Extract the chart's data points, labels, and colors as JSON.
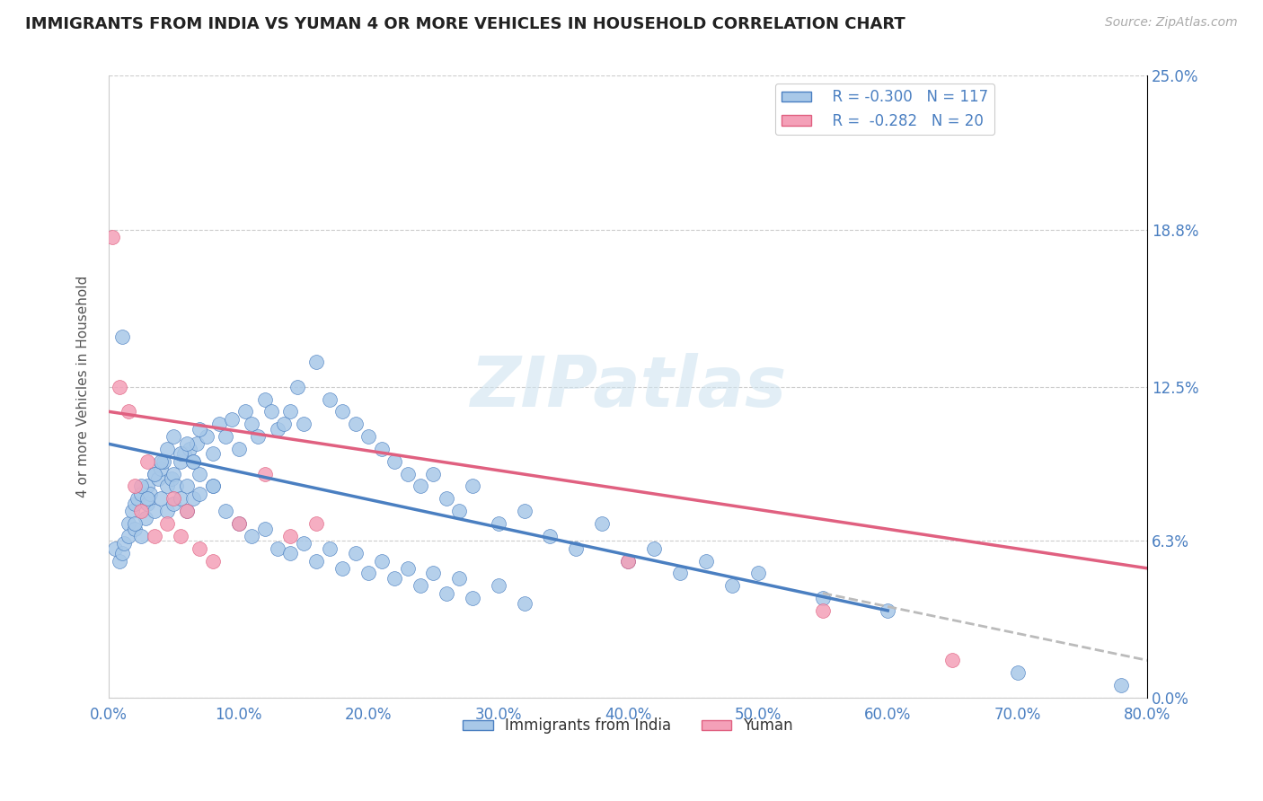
{
  "title": "IMMIGRANTS FROM INDIA VS YUMAN 4 OR MORE VEHICLES IN HOUSEHOLD CORRELATION CHART",
  "source_text": "Source: ZipAtlas.com",
  "ylabel": "4 or more Vehicles in Household",
  "x_min": 0.0,
  "x_max": 80.0,
  "y_min": 0.0,
  "y_max": 25.0,
  "y_ticks": [
    0.0,
    6.3,
    12.5,
    18.8,
    25.0
  ],
  "x_ticks": [
    0.0,
    10.0,
    20.0,
    30.0,
    40.0,
    50.0,
    60.0,
    70.0,
    80.0
  ],
  "legend_r1": "R = -0.300   N = 117",
  "legend_r2": "R =  -0.282   N = 20",
  "series1_color": "#a8c8e8",
  "series2_color": "#f4a0b8",
  "trendline1_color": "#4a7fc1",
  "trendline2_color": "#e06080",
  "watermark": "ZIPatlas",
  "background_color": "#ffffff",
  "series1_name": "Immigrants from India",
  "series2_name": "Yuman",
  "scatter1_x": [
    0.5,
    0.8,
    1.0,
    1.2,
    1.5,
    1.5,
    1.8,
    2.0,
    2.0,
    2.2,
    2.5,
    2.5,
    2.8,
    3.0,
    3.0,
    3.2,
    3.5,
    3.5,
    3.8,
    4.0,
    4.0,
    4.2,
    4.5,
    4.5,
    4.8,
    5.0,
    5.0,
    5.2,
    5.5,
    5.5,
    5.8,
    6.0,
    6.0,
    6.2,
    6.5,
    6.5,
    6.8,
    7.0,
    7.0,
    7.5,
    8.0,
    8.0,
    8.5,
    9.0,
    9.5,
    10.0,
    10.5,
    11.0,
    11.5,
    12.0,
    12.5,
    13.0,
    13.5,
    14.0,
    14.5,
    15.0,
    16.0,
    17.0,
    18.0,
    19.0,
    20.0,
    21.0,
    22.0,
    23.0,
    24.0,
    25.0,
    26.0,
    27.0,
    28.0,
    30.0,
    32.0,
    34.0,
    36.0,
    38.0,
    40.0,
    42.0,
    44.0,
    46.0,
    48.0,
    50.0,
    55.0,
    60.0,
    1.0,
    2.0,
    2.5,
    3.0,
    3.5,
    4.0,
    4.5,
    5.0,
    5.5,
    6.0,
    6.5,
    7.0,
    8.0,
    9.0,
    10.0,
    11.0,
    12.0,
    13.0,
    14.0,
    15.0,
    16.0,
    17.0,
    18.0,
    19.0,
    20.0,
    21.0,
    22.0,
    23.0,
    24.0,
    25.0,
    26.0,
    27.0,
    28.0,
    30.0,
    32.0,
    70.0,
    78.0
  ],
  "scatter1_y": [
    6.0,
    5.5,
    5.8,
    6.2,
    7.0,
    6.5,
    7.5,
    7.8,
    6.8,
    8.0,
    8.2,
    6.5,
    7.2,
    8.5,
    7.8,
    8.2,
    7.5,
    9.0,
    8.8,
    9.2,
    8.0,
    9.5,
    8.5,
    7.5,
    8.8,
    9.0,
    7.8,
    8.5,
    9.5,
    8.0,
    9.8,
    8.5,
    7.5,
    10.0,
    9.5,
    8.0,
    10.2,
    9.0,
    8.2,
    10.5,
    9.8,
    8.5,
    11.0,
    10.5,
    11.2,
    10.0,
    11.5,
    11.0,
    10.5,
    12.0,
    11.5,
    10.8,
    11.0,
    11.5,
    12.5,
    11.0,
    13.5,
    12.0,
    11.5,
    11.0,
    10.5,
    10.0,
    9.5,
    9.0,
    8.5,
    9.0,
    8.0,
    7.5,
    8.5,
    7.0,
    7.5,
    6.5,
    6.0,
    7.0,
    5.5,
    6.0,
    5.0,
    5.5,
    4.5,
    5.0,
    4.0,
    3.5,
    14.5,
    7.0,
    8.5,
    8.0,
    9.0,
    9.5,
    10.0,
    10.5,
    9.8,
    10.2,
    9.5,
    10.8,
    8.5,
    7.5,
    7.0,
    6.5,
    6.8,
    6.0,
    5.8,
    6.2,
    5.5,
    6.0,
    5.2,
    5.8,
    5.0,
    5.5,
    4.8,
    5.2,
    4.5,
    5.0,
    4.2,
    4.8,
    4.0,
    4.5,
    3.8,
    1.0,
    0.5
  ],
  "scatter2_x": [
    0.3,
    0.8,
    1.5,
    2.0,
    2.5,
    3.0,
    3.5,
    4.5,
    5.0,
    5.5,
    6.0,
    7.0,
    8.0,
    10.0,
    12.0,
    14.0,
    16.0,
    40.0,
    55.0,
    65.0
  ],
  "scatter2_y": [
    18.5,
    12.5,
    11.5,
    8.5,
    7.5,
    9.5,
    6.5,
    7.0,
    8.0,
    6.5,
    7.5,
    6.0,
    5.5,
    7.0,
    9.0,
    6.5,
    7.0,
    5.5,
    3.5,
    1.5
  ],
  "trend1_x_start": 0.0,
  "trend1_x_end": 60.0,
  "trend1_y_start": 10.2,
  "trend1_y_end": 3.5,
  "trend2_x_start": 0.0,
  "trend2_x_end": 80.0,
  "trend2_y_start": 11.5,
  "trend2_y_end": 5.2,
  "dash_x_start": 55.0,
  "dash_x_end": 80.0,
  "dash_y_start": 4.2,
  "dash_y_end": 1.5
}
